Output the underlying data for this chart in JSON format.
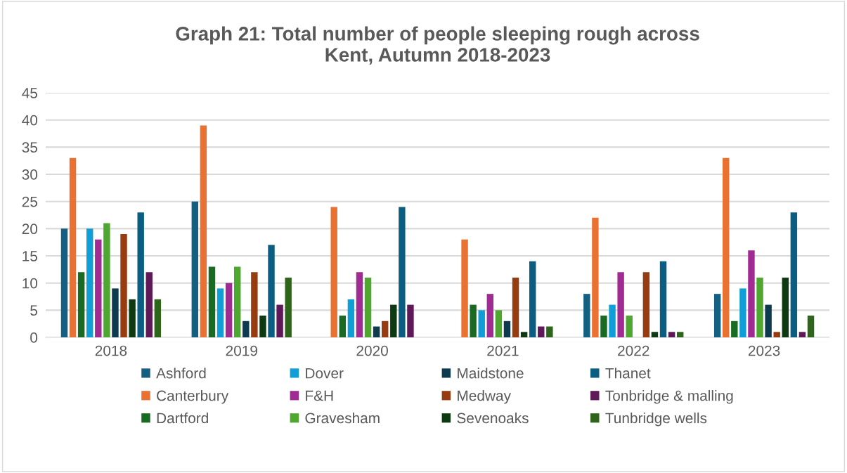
{
  "chart_data": {
    "type": "bar",
    "title": "Graph 21: Total number of people sleeping rough across\nKent, Autumn 2018-2023",
    "categories": [
      "2018",
      "2019",
      "2020",
      "2021",
      "2022",
      "2023"
    ],
    "series": [
      {
        "name": "Ashford",
        "color": "#156082",
        "values": [
          20,
          25,
          null,
          null,
          8,
          8
        ]
      },
      {
        "name": "Canterbury",
        "color": "#e97132",
        "values": [
          33,
          39,
          24,
          18,
          22,
          33
        ]
      },
      {
        "name": "Dartford",
        "color": "#196b24",
        "values": [
          12,
          13,
          4,
          6,
          4,
          3
        ]
      },
      {
        "name": "Dover",
        "color": "#0f9ed5",
        "values": [
          20,
          9,
          7,
          5,
          6,
          9
        ]
      },
      {
        "name": "F&H",
        "color": "#a02b93",
        "values": [
          18,
          10,
          12,
          8,
          12,
          16
        ]
      },
      {
        "name": "Gravesham",
        "color": "#4ea72e",
        "values": [
          21,
          13,
          11,
          5,
          4,
          11
        ]
      },
      {
        "name": "Maidstone",
        "color": "#0d3a4e",
        "values": [
          9,
          3,
          2,
          3,
          null,
          6
        ]
      },
      {
        "name": "Medway",
        "color": "#963c10",
        "values": [
          19,
          12,
          3,
          11,
          12,
          1
        ]
      },
      {
        "name": "Sevenoaks",
        "color": "#0e3a12",
        "values": [
          7,
          4,
          6,
          1,
          1,
          11
        ]
      },
      {
        "name": "Thanet",
        "color": "#0b5e82",
        "values": [
          23,
          17,
          24,
          14,
          14,
          23
        ]
      },
      {
        "name": "Tonbridge & malling",
        "color": "#601958",
        "values": [
          12,
          6,
          6,
          2,
          1,
          1
        ]
      },
      {
        "name": "Tunbridge wells",
        "color": "#2f641b",
        "values": [
          7,
          11,
          null,
          2,
          1,
          4
        ]
      }
    ],
    "ylim": [
      0,
      45
    ],
    "yticks": [
      0,
      5,
      10,
      15,
      20,
      25,
      30,
      35,
      40,
      45
    ],
    "grid": "y",
    "legend": "bottom"
  }
}
